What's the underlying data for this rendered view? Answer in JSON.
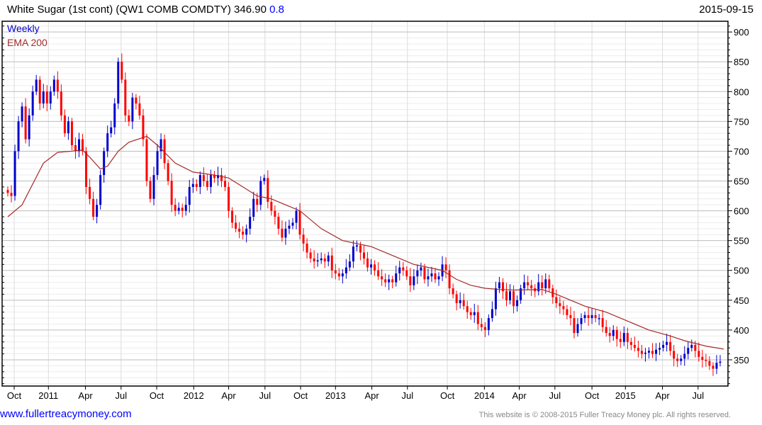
{
  "header": {
    "title": "White Sugar (1st cont) (QW1 COMB COMDTY) 346.90",
    "change": "0.8",
    "date": "2015-09-15"
  },
  "footer": {
    "site": "www.fullertreacymoney.com",
    "copyright": "This website is © 2008-2015 Fuller Treacy Money plc. All rights reserved."
  },
  "colors": {
    "up": "#0000cc",
    "down": "#ff0000",
    "ema": "#a52a2a"
  },
  "chart_data": {
    "type": "candlestick",
    "title": "White Sugar (1st cont) (QW1 COMB COMDTY)",
    "legend": [
      "Weekly",
      "EMA 200"
    ],
    "legend_placement": "top-left",
    "ylim": [
      306,
      918
    ],
    "yticks": [
      350,
      400,
      450,
      500,
      550,
      600,
      650,
      700,
      750,
      800,
      850,
      900
    ],
    "xticks": [
      {
        "i": 1.8,
        "label": "Oct"
      },
      {
        "i": 11.4,
        "label": "2011"
      },
      {
        "i": 21.8,
        "label": "Apr"
      },
      {
        "i": 31.8,
        "label": "Jul"
      },
      {
        "i": 41.8,
        "label": "Oct"
      },
      {
        "i": 52.2,
        "label": "2012"
      },
      {
        "i": 62,
        "label": "Apr"
      },
      {
        "i": 72.2,
        "label": "Jul"
      },
      {
        "i": 82.2,
        "label": "Oct"
      },
      {
        "i": 92,
        "label": "2013"
      },
      {
        "i": 102.2,
        "label": "Apr"
      },
      {
        "i": 112.2,
        "label": "Jul"
      },
      {
        "i": 123.4,
        "label": "Oct"
      },
      {
        "i": 133.8,
        "label": "2014"
      },
      {
        "i": 143.6,
        "label": "Apr"
      },
      {
        "i": 153.6,
        "label": "Jul"
      },
      {
        "i": 164,
        "label": "Oct"
      },
      {
        "i": 173.4,
        "label": "2015"
      },
      {
        "i": 183.8,
        "label": "Apr"
      },
      {
        "i": 193.8,
        "label": "Jul"
      }
    ],
    "close": [
      630,
      625,
      700,
      750,
      775,
      720,
      760,
      800,
      820,
      780,
      800,
      780,
      800,
      820,
      800,
      760,
      730,
      750,
      710,
      700,
      720,
      700,
      640,
      620,
      590,
      610,
      660,
      700,
      730,
      740,
      780,
      850,
      820,
      760,
      750,
      790,
      780,
      760,
      720,
      650,
      620,
      660,
      700,
      720,
      680,
      650,
      610,
      600,
      605,
      600,
      610,
      640,
      645,
      640,
      660,
      650,
      640,
      660,
      655,
      660,
      650,
      640,
      600,
      580,
      570,
      565,
      560,
      570,
      590,
      620,
      610,
      650,
      655,
      615,
      600,
      590,
      570,
      555,
      570,
      575,
      580,
      600,
      560,
      545,
      530,
      520,
      515,
      517,
      520,
      515,
      525,
      500,
      495,
      490,
      495,
      505,
      515,
      540,
      542,
      530,
      520,
      505,
      510,
      500,
      490,
      485,
      480,
      485,
      480,
      495,
      505,
      500,
      490,
      475,
      490,
      500,
      505,
      485,
      490,
      495,
      485,
      490,
      510,
      500,
      470,
      460,
      445,
      450,
      440,
      430,
      425,
      430,
      410,
      405,
      400,
      420,
      435,
      470,
      480,
      465,
      450,
      465,
      440,
      450,
      470,
      480,
      475,
      470,
      465,
      480,
      470,
      485,
      470,
      455,
      445,
      440,
      435,
      425,
      420,
      395,
      410,
      420,
      425,
      420,
      425,
      420,
      420,
      405,
      395,
      390,
      400,
      385,
      380,
      395,
      380,
      375,
      370,
      365,
      360,
      362,
      365,
      360,
      367,
      370,
      375,
      380,
      365,
      352,
      348,
      352,
      360,
      370,
      375,
      365,
      355,
      350,
      348,
      340,
      335,
      345,
      347
    ],
    "ema200": [
      {
        "i": 0,
        "v": 590
      },
      {
        "i": 4,
        "v": 610
      },
      {
        "i": 10,
        "v": 680
      },
      {
        "i": 14,
        "v": 698
      },
      {
        "i": 18,
        "v": 700
      },
      {
        "i": 21,
        "v": 702
      },
      {
        "i": 23,
        "v": 690
      },
      {
        "i": 26,
        "v": 670
      },
      {
        "i": 28,
        "v": 675
      },
      {
        "i": 31,
        "v": 700
      },
      {
        "i": 34,
        "v": 715
      },
      {
        "i": 39,
        "v": 725
      },
      {
        "i": 42,
        "v": 710
      },
      {
        "i": 47,
        "v": 680
      },
      {
        "i": 52,
        "v": 665
      },
      {
        "i": 58,
        "v": 660
      },
      {
        "i": 62,
        "v": 655
      },
      {
        "i": 66,
        "v": 640
      },
      {
        "i": 70,
        "v": 625
      },
      {
        "i": 74,
        "v": 620
      },
      {
        "i": 78,
        "v": 610
      },
      {
        "i": 82,
        "v": 600
      },
      {
        "i": 88,
        "v": 570
      },
      {
        "i": 94,
        "v": 550
      },
      {
        "i": 98,
        "v": 545
      },
      {
        "i": 102,
        "v": 540
      },
      {
        "i": 108,
        "v": 525
      },
      {
        "i": 114,
        "v": 510
      },
      {
        "i": 118,
        "v": 505
      },
      {
        "i": 122,
        "v": 500
      },
      {
        "i": 126,
        "v": 485
      },
      {
        "i": 130,
        "v": 475
      },
      {
        "i": 134,
        "v": 470
      },
      {
        "i": 138,
        "v": 468
      },
      {
        "i": 142,
        "v": 467
      },
      {
        "i": 150,
        "v": 468
      },
      {
        "i": 154,
        "v": 460
      },
      {
        "i": 158,
        "v": 450
      },
      {
        "i": 162,
        "v": 440
      },
      {
        "i": 168,
        "v": 430
      },
      {
        "i": 174,
        "v": 415
      },
      {
        "i": 180,
        "v": 400
      },
      {
        "i": 186,
        "v": 390
      },
      {
        "i": 190,
        "v": 382
      },
      {
        "i": 196,
        "v": 373
      },
      {
        "i": 201,
        "v": 368
      }
    ]
  }
}
